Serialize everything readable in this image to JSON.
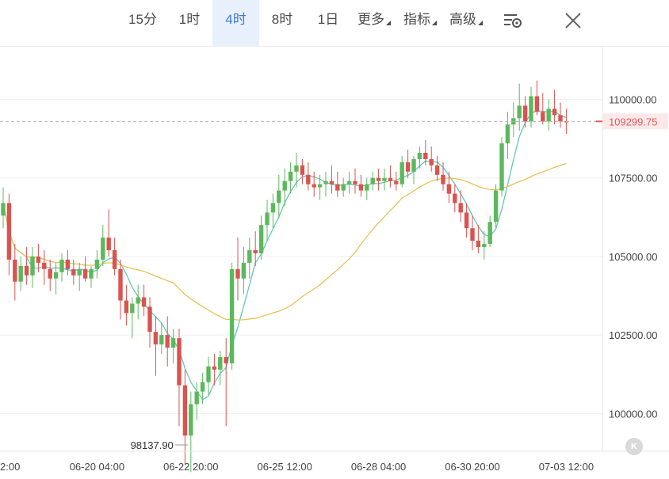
{
  "toolbar": {
    "tabs": [
      {
        "label": "15分"
      },
      {
        "label": "1时"
      },
      {
        "label": "4时",
        "active": true
      },
      {
        "label": "8时"
      },
      {
        "label": "1日"
      },
      {
        "label": "更多",
        "dropdown": true
      },
      {
        "label": "指标",
        "dropdown": true
      },
      {
        "label": "高级",
        "dropdown": true
      }
    ],
    "settings_icon": "chart-settings-icon",
    "close_icon": "close-icon"
  },
  "colors": {
    "up": "#5cb85c",
    "down": "#d9534f",
    "ma_short": "#66c6b8",
    "ma_long": "#e8c256",
    "price_line": "#e05b5b",
    "grid": "#efefef",
    "axis_text": "#444444",
    "active_tab": "#3d7bd6"
  },
  "chart_data": {
    "type": "candlestick",
    "y_ticks": [
      "110000.00",
      "107500.00",
      "105000.00",
      "102500.00",
      "100000.00"
    ],
    "y_tick_values": [
      110000,
      107500,
      105000,
      102500,
      100000
    ],
    "ylim": [
      98800,
      111500
    ],
    "x_ticks": [
      "2:00",
      "06-20 04:00",
      "06-22 20:00",
      "06-25 12:00",
      "06-28 04:00",
      "06-30 20:00",
      "07-03 12:00"
    ],
    "x_tick_index": [
      0,
      16,
      32,
      48,
      64,
      80,
      96
    ],
    "current_price": "109299.75",
    "current_price_value": 109299.75,
    "low_label": "98137.90",
    "low_value": 98137.9,
    "low_index": 32,
    "candles": [
      [
        106300,
        107200,
        105900,
        106700
      ],
      [
        106700,
        107000,
        104400,
        104900
      ],
      [
        104900,
        105400,
        103600,
        104200
      ],
      [
        104200,
        105000,
        103900,
        104700
      ],
      [
        104700,
        105300,
        104100,
        104400
      ],
      [
        104400,
        105300,
        104000,
        105000
      ],
      [
        105000,
        105400,
        104500,
        104800
      ],
      [
        104800,
        105200,
        104100,
        104600
      ],
      [
        104600,
        104900,
        103900,
        104300
      ],
      [
        104300,
        104800,
        103800,
        104500
      ],
      [
        104500,
        105100,
        104200,
        104900
      ],
      [
        104900,
        105200,
        104400,
        104600
      ],
      [
        104600,
        104900,
        104100,
        104400
      ],
      [
        104400,
        104800,
        103900,
        104600
      ],
      [
        104600,
        105000,
        104200,
        104300
      ],
      [
        104300,
        104700,
        104000,
        104600
      ],
      [
        104600,
        105200,
        104300,
        104900
      ],
      [
        104900,
        106000,
        104700,
        105600
      ],
      [
        105600,
        106500,
        105000,
        105200
      ],
      [
        105200,
        105600,
        104400,
        104600
      ],
      [
        104600,
        104900,
        103000,
        103600
      ],
      [
        103600,
        104100,
        102800,
        103200
      ],
      [
        103200,
        103700,
        102400,
        103500
      ],
      [
        103500,
        104100,
        103000,
        103700
      ],
      [
        103700,
        104100,
        103100,
        103400
      ],
      [
        103400,
        103700,
        102100,
        102600
      ],
      [
        102600,
        103100,
        101200,
        102200
      ],
      [
        102200,
        102900,
        101900,
        102500
      ],
      [
        102500,
        103100,
        101500,
        102100
      ],
      [
        102100,
        102700,
        101600,
        102400
      ],
      [
        102400,
        102700,
        99600,
        100900
      ],
      [
        100900,
        101400,
        98400,
        99300
      ],
      [
        99300,
        100700,
        98138,
        100300
      ],
      [
        100300,
        101000,
        99800,
        100700
      ],
      [
        100700,
        101300,
        100300,
        101000
      ],
      [
        101000,
        101800,
        100600,
        101500
      ],
      [
        101500,
        101900,
        100900,
        101400
      ],
      [
        101400,
        102000,
        100900,
        101800
      ],
      [
        101800,
        102400,
        99600,
        101600
      ],
      [
        101600,
        104800,
        101400,
        104600
      ],
      [
        104600,
        105600,
        103600,
        104300
      ],
      [
        104300,
        105300,
        103800,
        104800
      ],
      [
        104800,
        105600,
        104300,
        105200
      ],
      [
        105200,
        105800,
        104700,
        105100
      ],
      [
        105100,
        106300,
        104900,
        106000
      ],
      [
        106000,
        106800,
        105500,
        106400
      ],
      [
        106400,
        107000,
        105900,
        106700
      ],
      [
        106700,
        107600,
        106200,
        107100
      ],
      [
        107100,
        107800,
        106600,
        107400
      ],
      [
        107400,
        108000,
        107000,
        107700
      ],
      [
        107700,
        108300,
        107200,
        107900
      ],
      [
        107900,
        108100,
        107300,
        107600
      ],
      [
        107600,
        108000,
        107100,
        107300
      ],
      [
        107300,
        107700,
        106900,
        107200
      ],
      [
        107200,
        107600,
        106800,
        107300
      ],
      [
        107300,
        107700,
        106900,
        107400
      ],
      [
        107400,
        107900,
        107000,
        107300
      ],
      [
        107300,
        107700,
        106900,
        107100
      ],
      [
        107100,
        107500,
        106900,
        107300
      ],
      [
        107300,
        107700,
        107000,
        107400
      ],
      [
        107400,
        107800,
        107000,
        107300
      ],
      [
        107300,
        107600,
        106900,
        107100
      ],
      [
        107100,
        107500,
        106800,
        107300
      ],
      [
        107300,
        107700,
        107100,
        107500
      ],
      [
        107500,
        107800,
        107100,
        107400
      ],
      [
        107400,
        107800,
        107100,
        107500
      ],
      [
        107500,
        107900,
        107200,
        107400
      ],
      [
        107400,
        107700,
        107100,
        107300
      ],
      [
        107300,
        108200,
        107200,
        108000
      ],
      [
        108000,
        108400,
        107500,
        107700
      ],
      [
        107700,
        108200,
        107300,
        108100
      ],
      [
        108100,
        108500,
        107800,
        108300
      ],
      [
        108300,
        108700,
        107900,
        108100
      ],
      [
        108100,
        108500,
        107700,
        107900
      ],
      [
        107900,
        108200,
        107400,
        107600
      ],
      [
        107600,
        108000,
        107100,
        107300
      ],
      [
        107300,
        107700,
        106700,
        107000
      ],
      [
        107000,
        107300,
        106400,
        106700
      ],
      [
        106700,
        107100,
        106100,
        106400
      ],
      [
        106400,
        106700,
        105600,
        105900
      ],
      [
        105900,
        106300,
        105200,
        105500
      ],
      [
        105500,
        106000,
        105100,
        105300
      ],
      [
        105300,
        105800,
        104900,
        105400
      ],
      [
        105400,
        106300,
        105300,
        106100
      ],
      [
        106100,
        107300,
        105900,
        107100
      ],
      [
        107100,
        108800,
        106900,
        108600
      ],
      [
        108600,
        109600,
        108100,
        109200
      ],
      [
        109200,
        109900,
        108800,
        109400
      ],
      [
        109400,
        110500,
        109000,
        109800
      ],
      [
        109800,
        110100,
        109100,
        109300
      ],
      [
        109300,
        110400,
        109100,
        110100
      ],
      [
        110100,
        110600,
        109500,
        109600
      ],
      [
        109600,
        110200,
        109200,
        109300
      ],
      [
        109300,
        110000,
        109000,
        109700
      ],
      [
        109700,
        110300,
        109200,
        109500
      ],
      [
        109500,
        109900,
        109100,
        109300
      ],
      [
        109300,
        109700,
        108900,
        109299.75
      ]
    ]
  }
}
